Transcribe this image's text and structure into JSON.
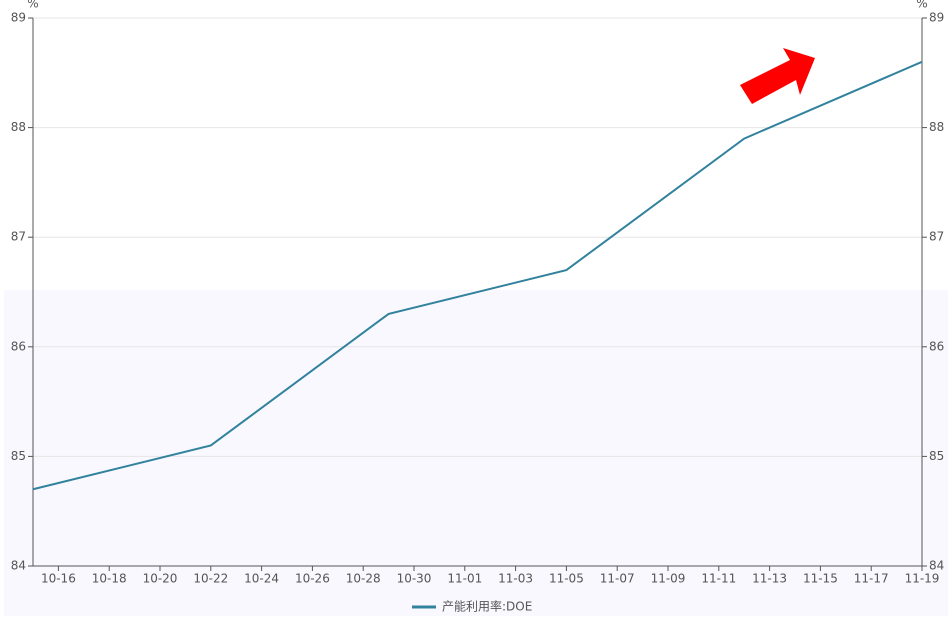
{
  "chart_data": {
    "type": "line",
    "y_unit": "%",
    "y2_unit": "%",
    "x": [
      "10-15",
      "10-22",
      "10-29",
      "11-05",
      "11-12",
      "11-19"
    ],
    "series": [
      {
        "name": "产能利用率:DOE",
        "color": "#31829d",
        "values": [
          84.7,
          85.1,
          86.3,
          86.7,
          87.9,
          88.6
        ]
      }
    ],
    "xlim": [
      "10-15",
      "11-19"
    ],
    "xticks": [
      "10-16",
      "10-18",
      "10-20",
      "10-22",
      "10-24",
      "10-26",
      "10-28",
      "10-30",
      "11-01",
      "11-03",
      "11-05",
      "11-07",
      "11-09",
      "11-11",
      "11-13",
      "11-15",
      "11-17",
      "11-19"
    ],
    "ylim": [
      84,
      89
    ],
    "yticks": [
      84,
      85,
      86,
      87,
      88,
      89
    ],
    "y2lim": [
      84,
      89
    ],
    "y2ticks": [
      84,
      85,
      86,
      87,
      88,
      89
    ],
    "grid": true,
    "legend": "bottom"
  }
}
